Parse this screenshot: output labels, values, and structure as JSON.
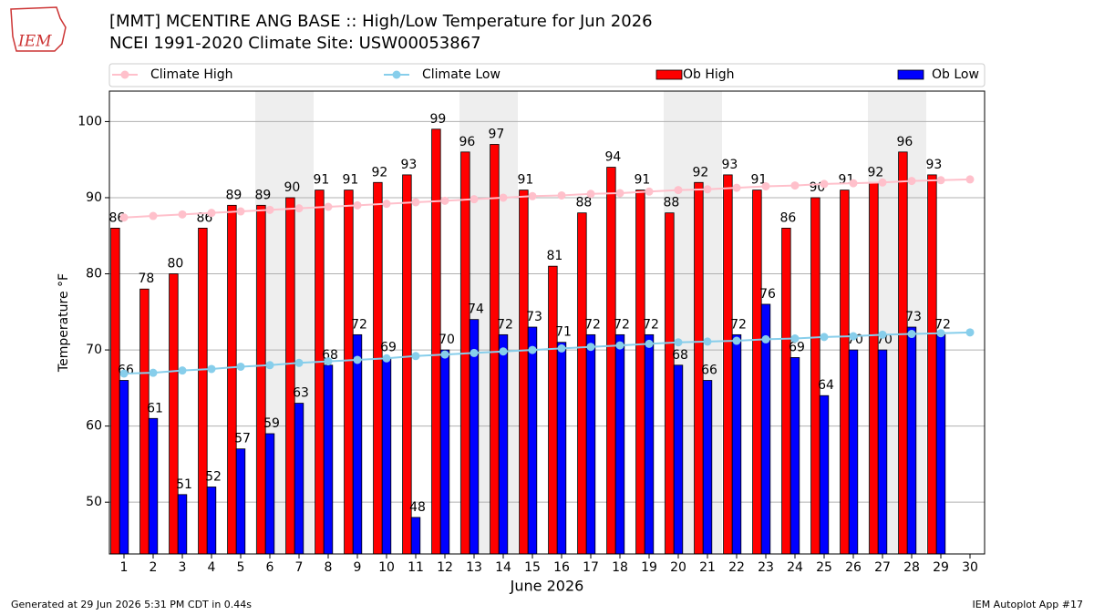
{
  "chart_data": {
    "type": "bar",
    "logo_text": "IEM",
    "title": "[MMT] MCENTIRE ANG BASE :: High/Low Temperature for Jun 2026",
    "subtitle": "NCEI 1991-2020 Climate Site: USW00053867",
    "xlabel": "June 2026",
    "ylabel": "Temperature °F",
    "footer_left": "Generated at 29 Jun 2026 5:31 PM CDT in 0.44s",
    "footer_right": "IEM Autoplot App #17",
    "x": [
      1,
      2,
      3,
      4,
      5,
      6,
      7,
      8,
      9,
      10,
      11,
      12,
      13,
      14,
      15,
      16,
      17,
      18,
      19,
      20,
      21,
      22,
      23,
      24,
      25,
      26,
      27,
      28,
      29,
      30
    ],
    "xlim": [
      0.5,
      30.5
    ],
    "xticks": [
      1,
      2,
      3,
      4,
      5,
      6,
      7,
      8,
      9,
      10,
      11,
      12,
      13,
      14,
      15,
      16,
      17,
      18,
      19,
      20,
      21,
      22,
      23,
      24,
      25,
      26,
      27,
      28,
      29,
      30
    ],
    "ylim": [
      43.2,
      104
    ],
    "yticks": [
      50,
      60,
      70,
      80,
      90,
      100
    ],
    "grid": true,
    "shaded_ranges": [
      [
        5.5,
        7.5
      ],
      [
        12.5,
        14.5
      ],
      [
        19.5,
        21.5
      ],
      [
        26.5,
        28.5
      ]
    ],
    "series": [
      {
        "name": "Climate High",
        "type": "line",
        "color": "#ffc0cb",
        "values": [
          87.4,
          87.6,
          87.8,
          88.0,
          88.2,
          88.4,
          88.6,
          88.8,
          89.0,
          89.2,
          89.4,
          89.6,
          89.8,
          90.0,
          90.2,
          90.3,
          90.5,
          90.6,
          90.8,
          91.0,
          91.1,
          91.3,
          91.5,
          91.6,
          91.8,
          91.9,
          92.0,
          92.2,
          92.3,
          92.4
        ]
      },
      {
        "name": "Climate Low",
        "type": "line",
        "color": "#87ceeb",
        "values": [
          66.9,
          67.0,
          67.3,
          67.5,
          67.8,
          68.0,
          68.3,
          68.5,
          68.7,
          68.9,
          69.2,
          69.4,
          69.6,
          69.8,
          70.0,
          70.2,
          70.4,
          70.6,
          70.8,
          71.0,
          71.1,
          71.2,
          71.4,
          71.5,
          71.7,
          71.8,
          72.0,
          72.1,
          72.2,
          72.3
        ]
      },
      {
        "name": "Ob High",
        "type": "bar",
        "color": "#ff0000",
        "values": [
          86,
          78,
          80,
          86,
          89,
          89,
          90,
          91,
          91,
          92,
          93,
          99,
          96,
          97,
          91,
          81,
          88,
          94,
          91,
          88,
          92,
          93,
          91,
          86,
          90,
          91,
          92,
          96,
          93,
          null
        ]
      },
      {
        "name": "Ob Low",
        "type": "bar",
        "color": "#0000ff",
        "values": [
          66,
          61,
          51,
          52,
          57,
          59,
          63,
          68,
          72,
          69,
          48,
          70,
          74,
          72,
          73,
          71,
          72,
          72,
          72,
          68,
          66,
          72,
          76,
          69,
          64,
          70,
          70,
          73,
          72,
          null
        ]
      }
    ]
  }
}
